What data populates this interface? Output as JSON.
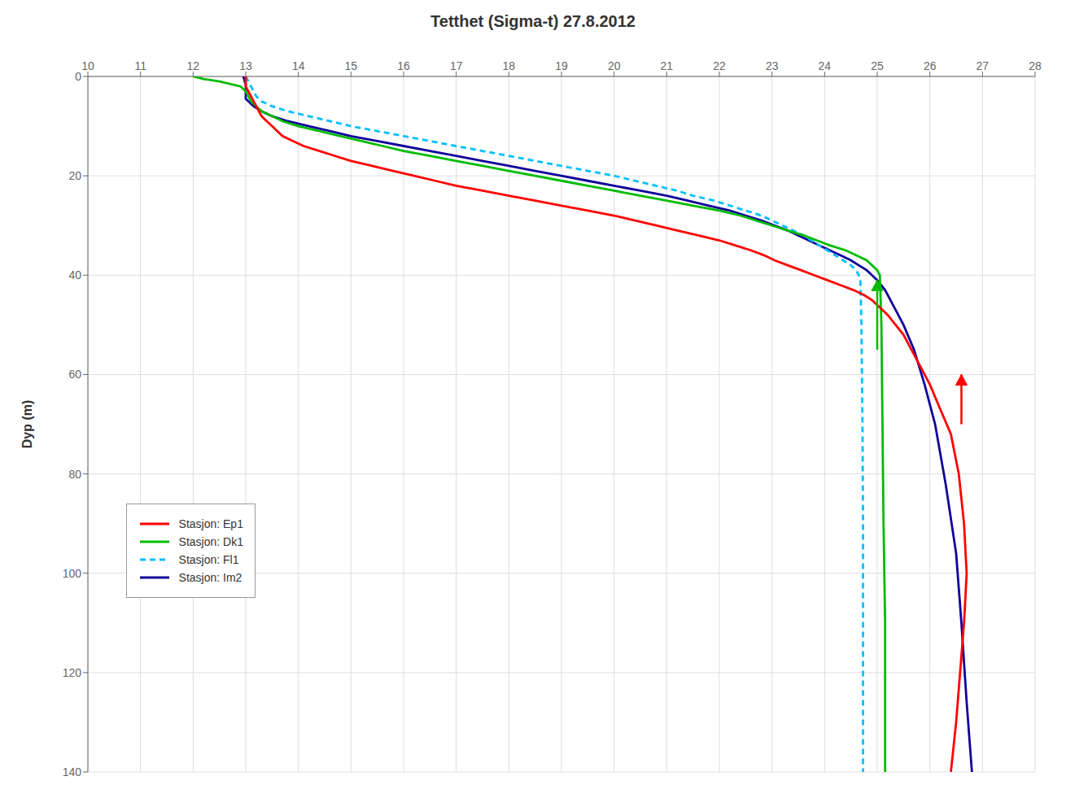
{
  "chart_data": {
    "type": "line",
    "title": "Tetthet (Sigma-t) 27.8.2012",
    "ylabel": "Dyp (m)",
    "xlim": [
      10,
      28
    ],
    "ylim": [
      140,
      0
    ],
    "xticks": [
      10,
      11,
      12,
      13,
      14,
      15,
      16,
      17,
      18,
      19,
      20,
      21,
      22,
      23,
      24,
      25,
      26,
      27,
      28
    ],
    "yticks": [
      0,
      20,
      40,
      60,
      80,
      100,
      120,
      140
    ],
    "grid": true,
    "legend": "lower left",
    "series": [
      {
        "name": "Stasjon: Ep1",
        "color": "#FF0000",
        "line_style": "solid",
        "x": [
          13.0,
          13.0,
          13.0,
          13.05,
          13.1,
          13.15,
          13.2,
          13.25,
          13.3,
          13.4,
          13.5,
          13.6,
          13.7,
          13.9,
          14.1,
          14.4,
          14.7,
          15.0,
          15.4,
          15.8,
          16.2,
          16.6,
          17.0,
          17.5,
          18.0,
          18.5,
          19.0,
          19.5,
          20.0,
          20.4,
          20.8,
          21.2,
          21.6,
          22.0,
          22.3,
          22.6,
          22.85,
          23.05,
          23.3,
          23.55,
          23.8,
          24.05,
          24.3,
          24.55,
          24.75,
          24.9,
          25.0,
          25.1,
          25.2,
          25.35,
          25.5,
          25.65,
          25.8,
          26.0,
          26.2,
          26.4,
          26.55,
          26.65,
          26.7,
          26.65,
          26.5,
          26.4
        ],
        "values": [
          0,
          1,
          2,
          3,
          4,
          5,
          6,
          7,
          8,
          9,
          10,
          11,
          12,
          13,
          14,
          15,
          16,
          17,
          18,
          19,
          20,
          21,
          22,
          23,
          24,
          25,
          26,
          27,
          28,
          29,
          30,
          31,
          32,
          33,
          34,
          35,
          36,
          37,
          38,
          39,
          40,
          41,
          42,
          43,
          44,
          45,
          46,
          47,
          48,
          50,
          52,
          55,
          58,
          62,
          67,
          72,
          80,
          90,
          100,
          110,
          130,
          140
        ]
      },
      {
        "name": "Stasjon: Dk1",
        "color": "#00BB00",
        "line_style": "solid",
        "x": [
          12.0,
          12.2,
          12.5,
          12.9,
          13.0,
          13.05,
          13.1,
          13.2,
          13.3,
          13.5,
          13.7,
          14.0,
          14.4,
          14.8,
          15.2,
          15.6,
          16.0,
          16.5,
          17.0,
          17.5,
          18.0,
          18.5,
          19.0,
          19.5,
          20.0,
          20.5,
          21.0,
          21.5,
          22.0,
          22.4,
          22.7,
          23.0,
          23.3,
          23.6,
          23.85,
          24.1,
          24.4,
          24.6,
          24.8,
          24.9,
          25.0,
          25.05,
          25.08,
          25.1,
          25.12,
          25.15,
          25.15,
          25.15,
          25.15
        ],
        "values": [
          0,
          0.5,
          1,
          2,
          3,
          4,
          5,
          6,
          7,
          8,
          9,
          10,
          11,
          12,
          13,
          14,
          15,
          16,
          17,
          18,
          19,
          20,
          21,
          22,
          23,
          24,
          25,
          26,
          27,
          28,
          29,
          30,
          31,
          32,
          33,
          34,
          35,
          36,
          37,
          38,
          39,
          40,
          50,
          70,
          90,
          110,
          120,
          130,
          140
        ]
      },
      {
        "name": "Stasjon: Fl1",
        "color": "#00BFFF",
        "line_style": "dashed",
        "x": [
          13.0,
          13.05,
          13.1,
          13.15,
          13.2,
          13.3,
          13.5,
          13.8,
          14.2,
          14.6,
          15.0,
          15.5,
          16.0,
          16.5,
          17.0,
          17.5,
          18.0,
          18.5,
          19.0,
          19.5,
          20.0,
          20.4,
          20.8,
          21.2,
          21.5,
          21.9,
          22.2,
          22.5,
          22.8,
          23.0,
          23.2,
          23.4,
          23.6,
          23.75,
          23.9,
          24.05,
          24.2,
          24.35,
          24.5,
          24.6,
          24.65,
          24.68,
          24.7,
          24.72,
          24.73,
          24.73,
          24.73,
          24.73,
          24.73
        ],
        "values": [
          0,
          1,
          2,
          3,
          4,
          5,
          6,
          7,
          8,
          9,
          10,
          11,
          12,
          13,
          14,
          15,
          16,
          17,
          18,
          19,
          20,
          21,
          22,
          23,
          24,
          25,
          26,
          27,
          28,
          29,
          30,
          31,
          32,
          33,
          34,
          35,
          36,
          37,
          38,
          39,
          40,
          41,
          50,
          70,
          90,
          100,
          110,
          130,
          140
        ]
      },
      {
        "name": "Stasjon: Im2",
        "color": "#10009A",
        "line_style": "solid",
        "x": [
          12.95,
          12.97,
          12.98,
          13.0,
          13.0,
          13.0,
          13.0,
          13.0,
          13.0,
          13.0,
          13.05,
          13.15,
          13.3,
          13.5,
          13.8,
          14.2,
          14.6,
          15.0,
          15.5,
          16.0,
          16.5,
          17.0,
          17.5,
          18.0,
          18.5,
          19.0,
          19.5,
          20.0,
          20.5,
          21.0,
          21.4,
          21.8,
          22.2,
          22.5,
          22.8,
          23.05,
          23.3,
          23.5,
          23.7,
          23.9,
          24.1,
          24.3,
          24.5,
          24.65,
          24.8,
          24.9,
          25.0,
          25.15,
          25.3,
          25.5,
          25.7,
          25.9,
          26.1,
          26.3,
          26.5,
          26.6,
          26.65,
          26.7,
          26.75,
          26.8
        ],
        "values": [
          0,
          0.5,
          1,
          1.5,
          2,
          2.5,
          3,
          3.5,
          4,
          4.5,
          5,
          6,
          7,
          8,
          9,
          10,
          11,
          12,
          13,
          14,
          15,
          16,
          17,
          18,
          19,
          20,
          21,
          22,
          23,
          24,
          25,
          26,
          27,
          28,
          29,
          30,
          31,
          32,
          33,
          34,
          35,
          36,
          37,
          38,
          39,
          40,
          41,
          43,
          46,
          50,
          55,
          62,
          70,
          82,
          96,
          110,
          118,
          126,
          133,
          140
        ]
      }
    ],
    "annotations": [
      {
        "type": "arrow",
        "x": 25.0,
        "y_from": 55,
        "y_to": 41,
        "color": "#00BB00"
      },
      {
        "type": "arrow",
        "x": 26.6,
        "y_from": 70,
        "y_to": 60,
        "color": "#FF0000"
      }
    ]
  }
}
